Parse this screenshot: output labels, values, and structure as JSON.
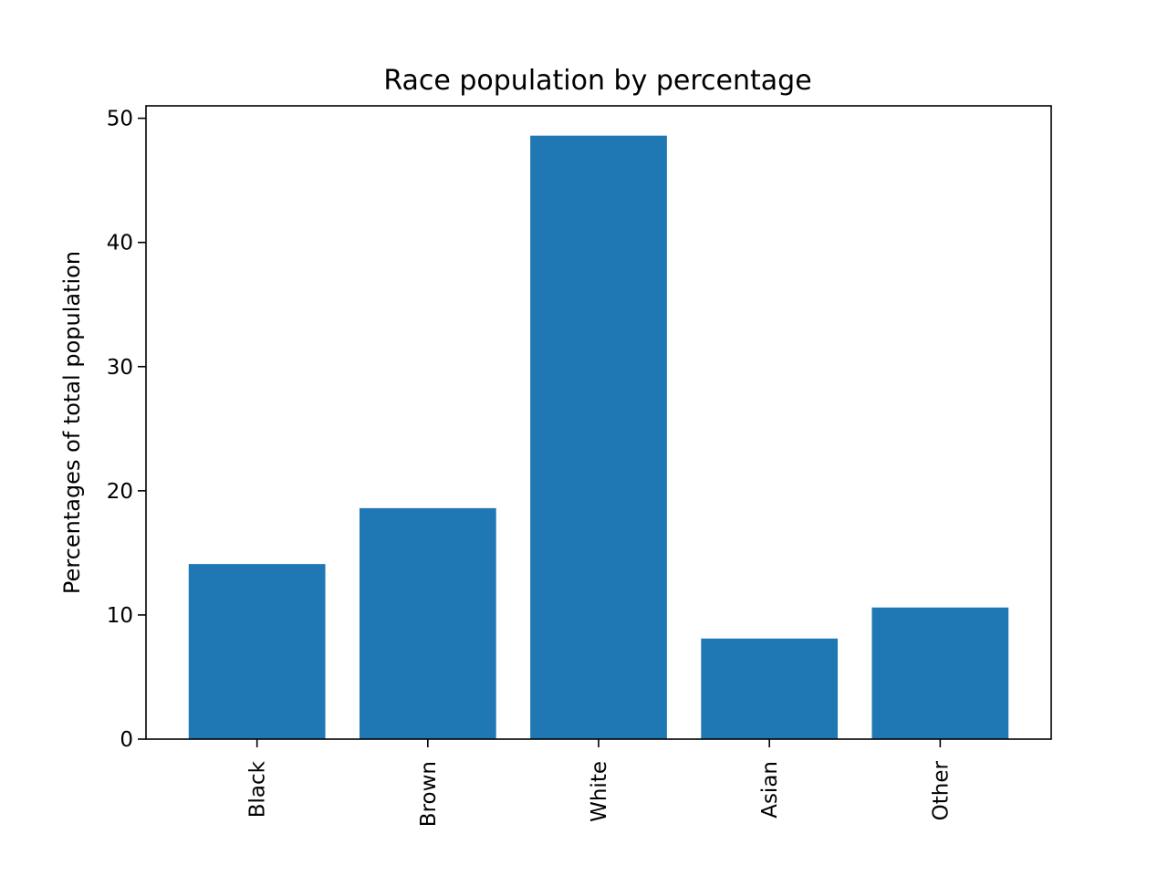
{
  "chart_data": {
    "type": "bar",
    "title": "Race population by percentage",
    "xlabel": "",
    "ylabel": "Percentages of total population",
    "categories": [
      "Black",
      "Brown",
      "White",
      "Asian",
      "Other"
    ],
    "values": [
      14.1,
      18.6,
      48.6,
      8.1,
      10.6
    ],
    "ylim": [
      0,
      51
    ],
    "yticks": [
      0,
      10,
      20,
      30,
      40,
      50
    ],
    "ytick_labels": [
      "0",
      "10",
      "20",
      "30",
      "40",
      "50"
    ],
    "xtick_rotation": "vertical",
    "grid": false,
    "legend": "none",
    "bar_color": "#1f77b4"
  }
}
